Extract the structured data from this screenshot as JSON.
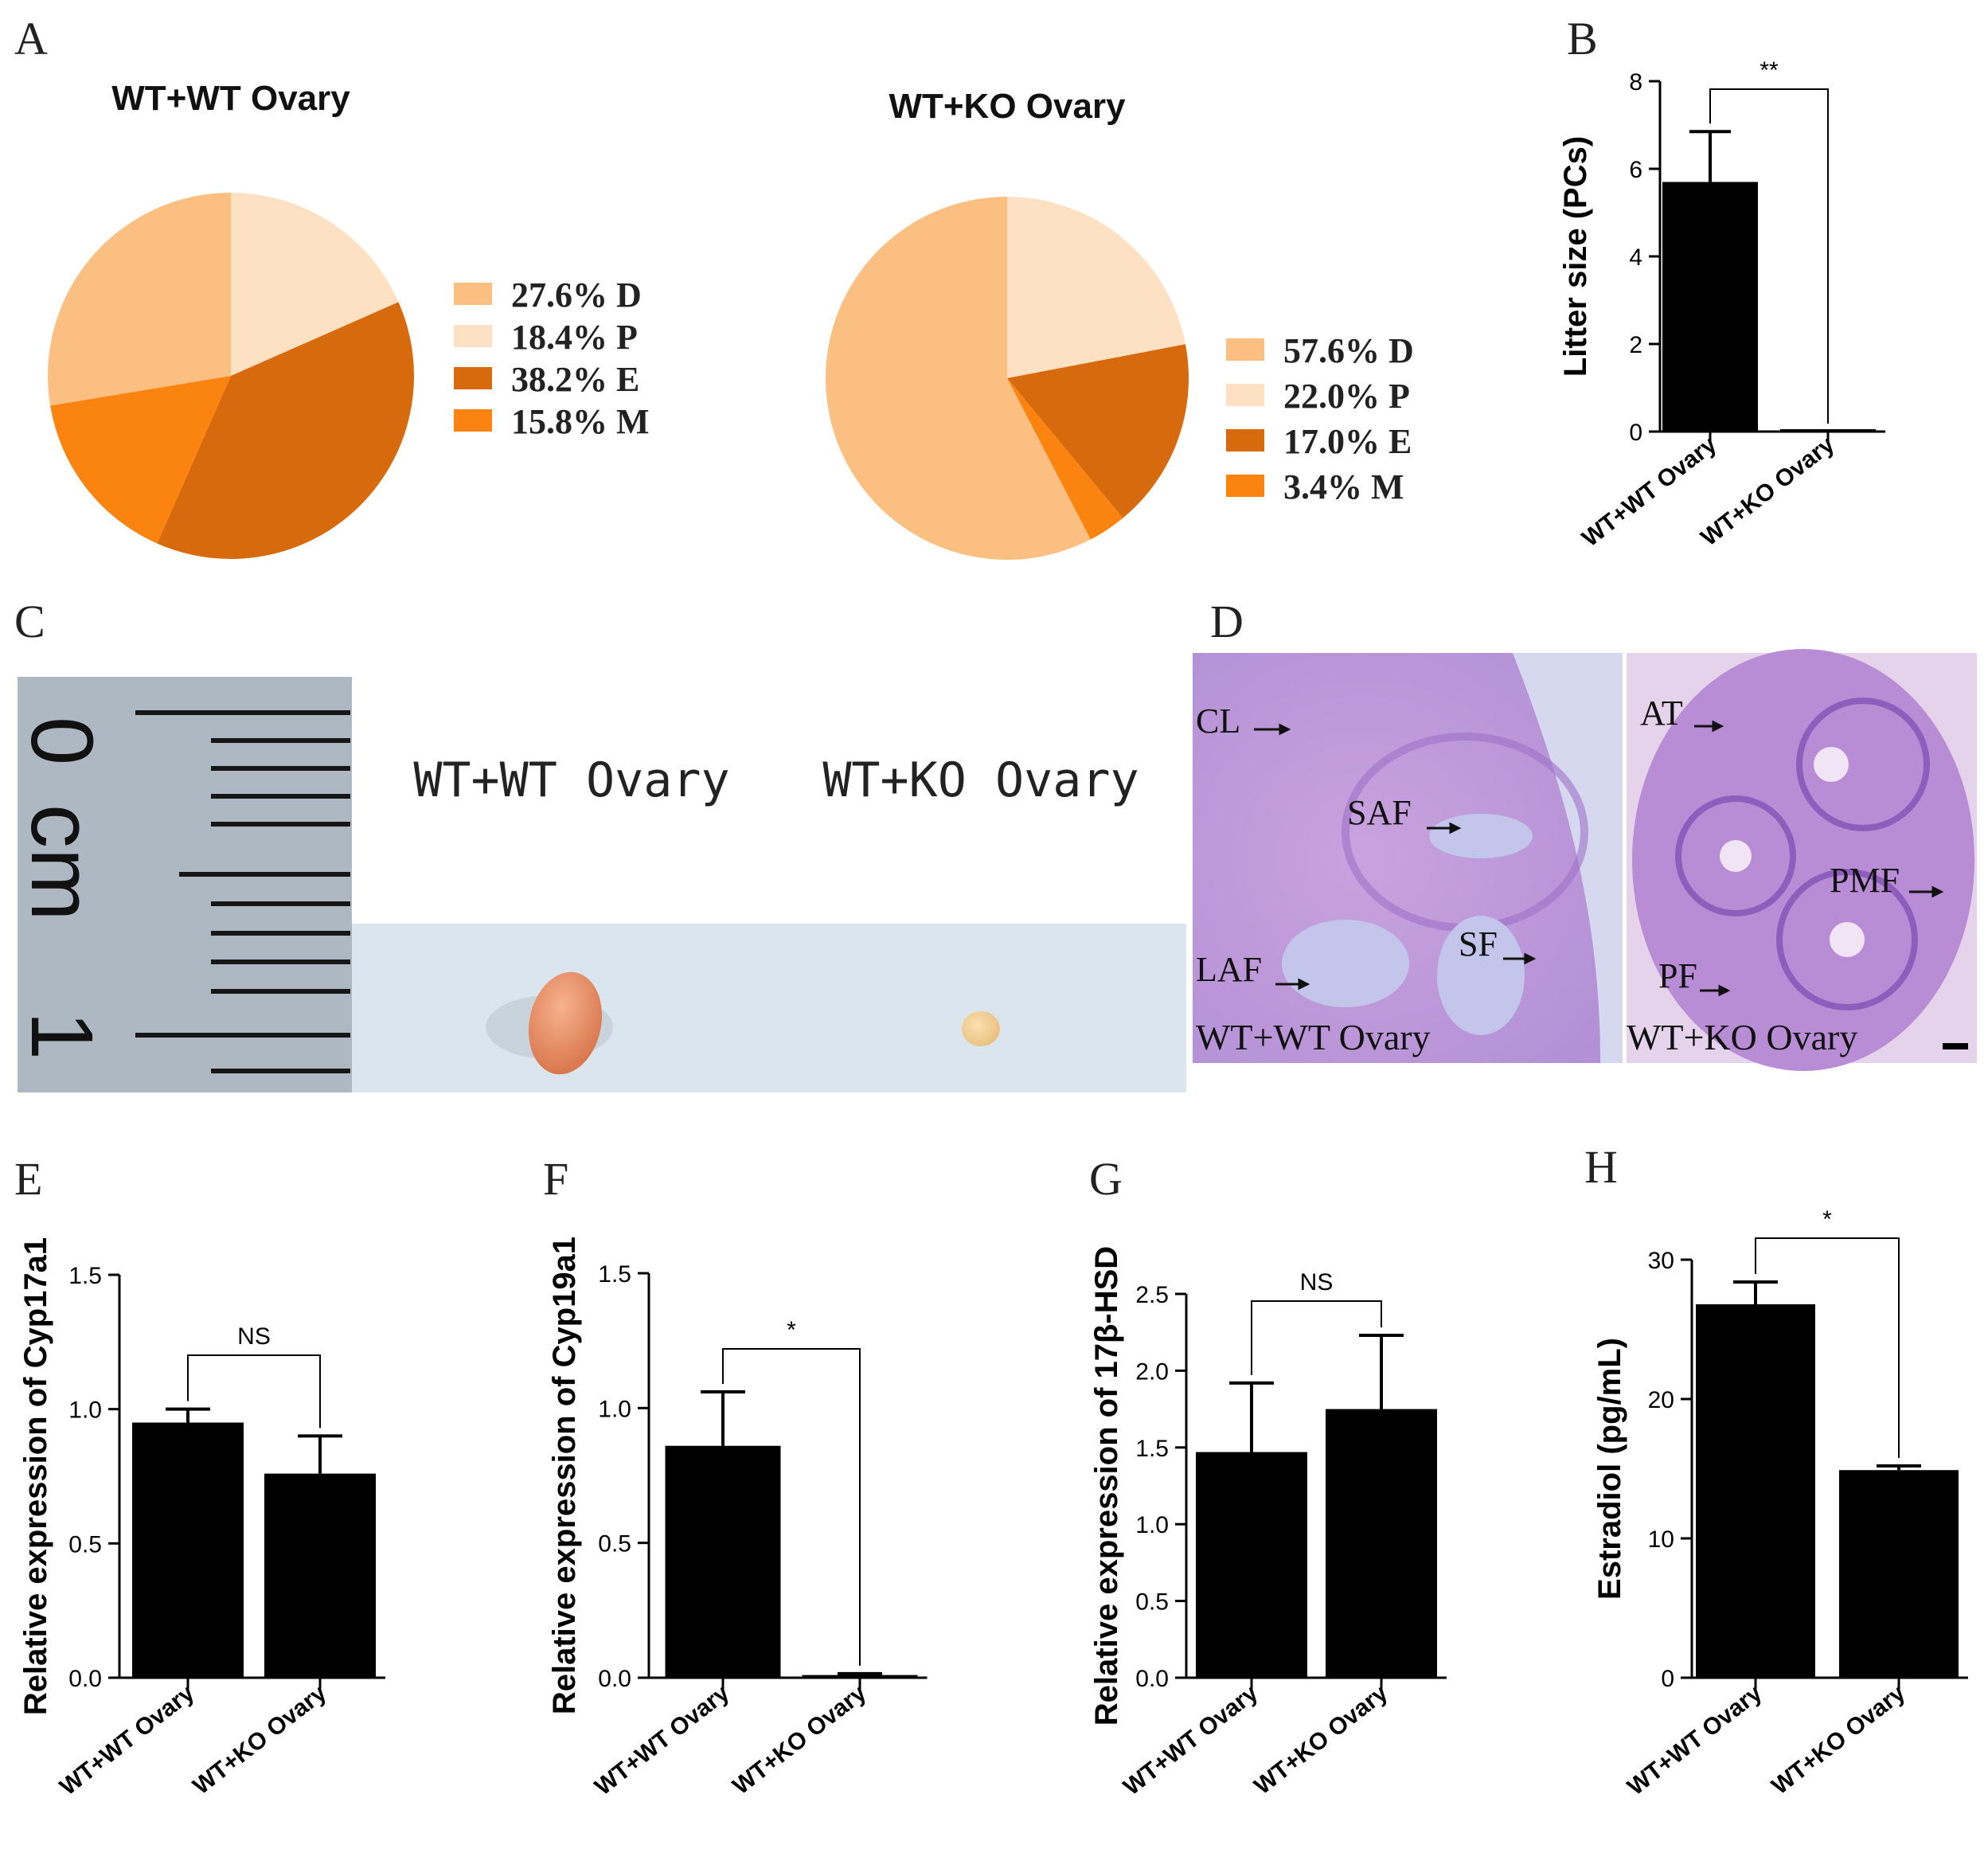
{
  "panels": {
    "A": "A",
    "B": "B",
    "C": "C",
    "D": "D",
    "E": "E",
    "F": "F",
    "G": "G",
    "H": "H"
  },
  "colors": {
    "D": "#FBBF82",
    "P": "#FDE1C2",
    "E": "#D86A0E",
    "M": "#FB8410",
    "bar": "#000000"
  },
  "chart_data": [
    {
      "id": "A1",
      "type": "pie",
      "title": "WT+WT Ovary",
      "slices": [
        {
          "key": "P",
          "value": 18.4,
          "label": "18.4% P"
        },
        {
          "key": "E",
          "value": 38.2,
          "label": "38.2% E"
        },
        {
          "key": "M",
          "value": 15.8,
          "label": "15.8% M"
        },
        {
          "key": "D",
          "value": 27.6,
          "label": "27.6% D"
        }
      ],
      "legend": [
        "27.6% D",
        "18.4% P",
        "38.2% E",
        "15.8% M"
      ],
      "legend_keys": [
        "D",
        "P",
        "E",
        "M"
      ]
    },
    {
      "id": "A2",
      "type": "pie",
      "title": "WT+KO Ovary",
      "slices": [
        {
          "key": "P",
          "value": 22.0,
          "label": "22.0% P"
        },
        {
          "key": "E",
          "value": 17.0,
          "label": "17.0% E"
        },
        {
          "key": "M",
          "value": 3.4,
          "label": "3.4% M"
        },
        {
          "key": "D",
          "value": 57.6,
          "label": "57.6% D"
        }
      ],
      "legend": [
        "57.6% D",
        "22.0% P",
        "17.0% E",
        "3.4%  M"
      ],
      "legend_keys": [
        "D",
        "P",
        "E",
        "M"
      ]
    },
    {
      "id": "B",
      "type": "bar",
      "categories": [
        "WT+WT Ovary",
        "WT+KO Ovary"
      ],
      "values": [
        5.7,
        0
      ],
      "errors": [
        1.15,
        0
      ],
      "ylabel": "Litter size (PCs)",
      "ylim": [
        0,
        8
      ],
      "yticks": [
        0,
        2,
        4,
        6,
        8
      ],
      "yticklabels": [
        "0",
        "2",
        "4",
        "6",
        "8"
      ],
      "significance": "**"
    },
    {
      "id": "E",
      "type": "bar",
      "categories": [
        "WT+WT Ovary",
        "WT+KO Ovary"
      ],
      "values": [
        0.95,
        0.76
      ],
      "errors": [
        0.05,
        0.14
      ],
      "ylabel": "Relative expression of Cyp17a1",
      "ylim": [
        0,
        1.5
      ],
      "yticks": [
        0,
        0.5,
        1.0,
        1.5
      ],
      "yticklabels": [
        "0.0",
        "0.5",
        "1.0",
        "1.5"
      ],
      "significance": "NS"
    },
    {
      "id": "F",
      "type": "bar",
      "categories": [
        "WT+WT Ovary",
        "WT+KO Ovary"
      ],
      "values": [
        0.86,
        0.01
      ],
      "errors": [
        0.2,
        0.005
      ],
      "ylabel": "Relative expression of Cyp19a1",
      "ylim": [
        0,
        1.5
      ],
      "yticks": [
        0,
        0.5,
        1.0,
        1.5
      ],
      "yticklabels": [
        "0.0",
        "0.5",
        "1.0",
        "1.5"
      ],
      "significance": "*"
    },
    {
      "id": "G",
      "type": "bar",
      "categories": [
        "WT+WT Ovary",
        "WT+KO Ovary"
      ],
      "values": [
        1.47,
        1.75
      ],
      "errors": [
        0.45,
        0.48
      ],
      "ylabel": "Relative expression of 17β-HSD",
      "ylim": [
        0,
        2.5
      ],
      "yticks": [
        0,
        0.5,
        1.0,
        1.5,
        2.0,
        2.5
      ],
      "yticklabels": [
        "0.0",
        "0.5",
        "1.0",
        "1.5",
        "2.0",
        "2.5"
      ],
      "significance": "NS"
    },
    {
      "id": "H",
      "type": "bar",
      "categories": [
        "WT+WT Ovary",
        "WT+KO Ovary"
      ],
      "values": [
        26.8,
        14.9
      ],
      "errors": [
        1.6,
        0.3
      ],
      "ylabel": "Estradiol (pg/mL)",
      "ylim": [
        0,
        30
      ],
      "yticks": [
        0,
        10,
        20,
        30
      ],
      "yticklabels": [
        "0",
        "10",
        "20",
        "30"
      ],
      "significance": "*"
    }
  ],
  "photo_c": {
    "ruler_labels": [
      "0",
      "cm",
      "1"
    ],
    "left_label": "WT+WT Ovary",
    "right_label": "WT+KO Ovary"
  },
  "histology_d": {
    "left_labels": [
      "CL",
      "SAF",
      "LAF",
      "SF"
    ],
    "left_caption": "WT+WT Ovary",
    "right_labels": [
      "AT",
      "PMF",
      "PF"
    ],
    "right_caption": "WT+KO Ovary"
  }
}
